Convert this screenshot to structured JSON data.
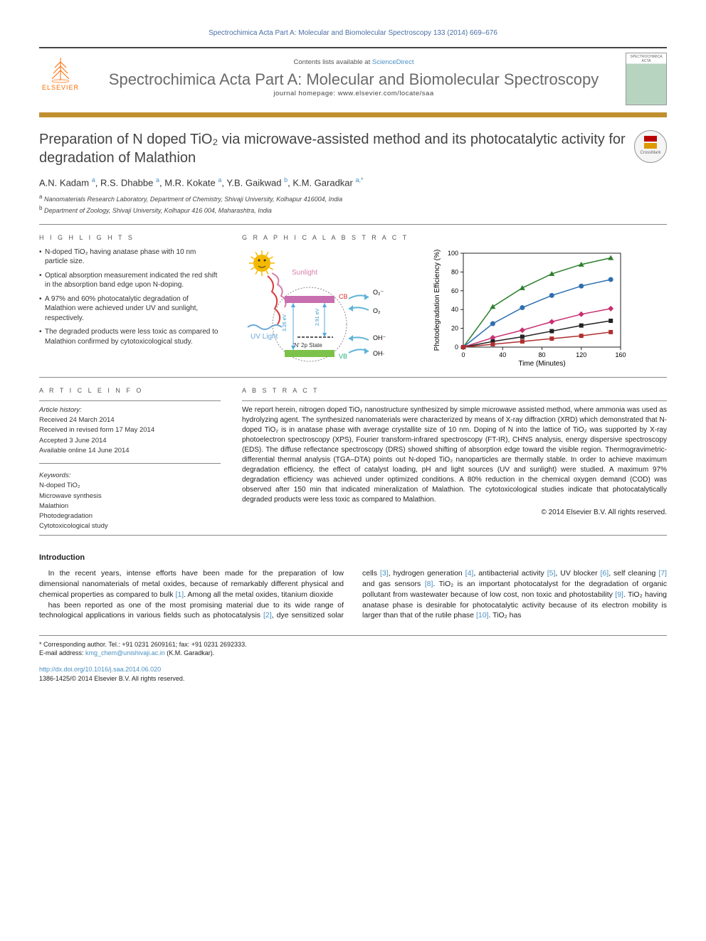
{
  "top_reference": "Spectrochimica Acta Part A: Molecular and Biomolecular Spectroscopy 133 (2014) 669–676",
  "header": {
    "contents_prefix": "Contents lists available at ",
    "contents_link": "ScienceDirect",
    "journal_name": "Spectrochimica Acta Part A: Molecular and Biomolecular Spectroscopy",
    "homepage_prefix": "journal homepage: ",
    "homepage_url": "www.elsevier.com/locate/saa",
    "publisher_logo_text": "ELSEVIER",
    "cover_text": "SPECTROCHIMICA ACTA"
  },
  "crossmark_label": "CrossMark",
  "article": {
    "title": "Preparation of N doped TiO₂ via microwave-assisted method and its photocatalytic activity for degradation of Malathion",
    "authors_html": "A.N. Kadam <sup>a</sup>, R.S. Dhabbe <sup>a</sup>, M.R. Kokate <sup>a</sup>, Y.B. Gaikwad <sup>b</sup>, K.M. Garadkar <sup>a,*</sup>",
    "affiliations": [
      "a Nanomaterials Research Laboratory, Department of Chemistry, Shivaji University, Kolhapur 416004, India",
      "b Department of Zoology, Shivaji University, Kolhapur 416 004, Maharashtra, India"
    ]
  },
  "labels": {
    "highlights": "H I G H L I G H T S",
    "graphical_abstract": "G R A P H I C A L  A B S T R A C T",
    "article_info": "A R T I C L E  I N F O",
    "abstract": "A B S T R A C T"
  },
  "highlights": [
    "N-doped TiO₂ having anatase phase with 10 nm particle size.",
    "Optical absorption measurement indicated the red shift in the absorption band edge upon N-doping.",
    "A 97% and 60% photocatalytic degradation of Malathion were achieved under UV and sunlight, respectively.",
    "The degraded products were less toxic as compared to Malathion confirmed by cytotoxicological study."
  ],
  "graphical_abstract_diagram": {
    "labels": {
      "sunlight": "Sunlight",
      "uv": "UV Light",
      "cb": "CB",
      "vb": "VB",
      "n2p": "'N' 2p State",
      "eV1": "3.26 eV",
      "eV2": "2.91 eV",
      "o2minus": "O₂⁻",
      "o2": "O₂",
      "ohminus": "OH⁻",
      "ohdot": "OH·"
    },
    "colors": {
      "sun": "#f5b800",
      "red_arrow": "#d83a3a",
      "blue_wave": "#6aa6d8",
      "pink_wave": "#d77fa8",
      "cb_band": "#c86fb0",
      "vb_band": "#7cc24a",
      "n_band": "#5a5a5a",
      "circle": "#888",
      "product_arrow": "#5fb4d8"
    }
  },
  "graphical_abstract_chart": {
    "type": "line",
    "x_label": "Time (Minutes)",
    "y_label": "Photodegradation Efficiency (%)",
    "xlim": [
      0,
      160
    ],
    "ylim": [
      0,
      100
    ],
    "xticks": [
      0,
      40,
      80,
      120,
      160
    ],
    "yticks": [
      0,
      20,
      40,
      60,
      80,
      100
    ],
    "axis_color": "#222",
    "grid_color": "#ddd",
    "label_fontsize": 10,
    "tick_fontsize": 9,
    "background_color": "#ffffff",
    "series": [
      {
        "name": "s1",
        "color": "#2d7f2d",
        "marker": "triangle",
        "x": [
          0,
          30,
          60,
          90,
          120,
          150
        ],
        "y": [
          0,
          43,
          63,
          78,
          88,
          95
        ]
      },
      {
        "name": "s2",
        "color": "#2d6fb0",
        "marker": "circle",
        "x": [
          0,
          30,
          60,
          90,
          120,
          150
        ],
        "y": [
          0,
          25,
          42,
          55,
          65,
          72
        ]
      },
      {
        "name": "s3",
        "color": "#c82f6f",
        "marker": "diamond",
        "x": [
          0,
          30,
          60,
          90,
          120,
          150
        ],
        "y": [
          0,
          10,
          18,
          27,
          35,
          41
        ]
      },
      {
        "name": "s4",
        "color": "#222222",
        "marker": "square",
        "x": [
          0,
          30,
          60,
          90,
          120,
          150
        ],
        "y": [
          0,
          6,
          11,
          17,
          23,
          28
        ]
      },
      {
        "name": "s5",
        "color": "#b02f2f",
        "marker": "square",
        "x": [
          0,
          30,
          60,
          90,
          120,
          150
        ],
        "y": [
          0,
          3,
          6,
          9,
          12,
          16
        ]
      }
    ]
  },
  "article_info": {
    "history_label": "Article history:",
    "history": [
      "Received 24 March 2014",
      "Received in revised form 17 May 2014",
      "Accepted 3 June 2014",
      "Available online 14 June 2014"
    ],
    "keywords_label": "Keywords:",
    "keywords": [
      "N-doped TiO₂",
      "Microwave synthesis",
      "Malathion",
      "Photodegradation",
      "Cytotoxicological study"
    ]
  },
  "abstract_text": "We report herein, nitrogen doped TiO₂ nanostructure synthesized by simple microwave assisted method, where ammonia was used as hydrolyzing agent. The synthesized nanomaterials were characterized by means of X-ray diffraction (XRD) which demonstrated that N-doped TiO₂ is in anatase phase with average crystallite size of 10 nm. Doping of N into the lattice of TiO₂ was supported by X-ray photoelectron spectroscopy (XPS), Fourier transform-infrared spectroscopy (FT-IR), CHNS analysis, energy dispersive spectroscopy (EDS). The diffuse reflectance spectroscopy (DRS) showed shifting of absorption edge toward the visible region. Thermogravimetric-differential thermal analysis (TGA–DTA) points out N-doped TiO₂ nanoparticles are thermally stable. In order to achieve maximum degradation efficiency, the effect of catalyst loading, pH and light sources (UV and sunlight) were studied. A maximum 97% degradation efficiency was achieved under optimized conditions. A 80% reduction in the chemical oxygen demand (COD) was observed after 150 min that indicated mineralization of Malathion. The cytotoxicological studies indicate that photocatalytically degraded products were less toxic as compared to Malathion.",
  "copyright": "© 2014 Elsevier B.V. All rights reserved.",
  "introduction": {
    "heading": "Introduction",
    "para1": "In the recent years, intense efforts have been made for the preparation of low dimensional nanomaterials of metal oxides, because of remarkably different physical and chemical properties as compared to bulk [1]. Among all the metal oxides, titanium dioxide",
    "para2": "has been reported as one of the most promising material due to its wide range of technological applications in various fields such as photocatalysis [2], dye sensitized solar cells [3], hydrogen generation [4], antibacterial activity [5], UV blocker [6], self cleaning [7] and gas sensors [8]. TiO₂ is an important photocatalyst for the degradation of organic pollutant from wastewater because of low cost, non toxic and photostability [9]. TiO₂ having anatase phase is desirable for photocatalytic activity because of its electron mobility is larger than that of the rutile phase [10]. TiO₂ has"
  },
  "footer": {
    "corr_label": "* Corresponding author. Tel.: +91 0231 2609161; fax: +91 0231 2692333.",
    "email_label": "E-mail address: ",
    "email": "kmg_chem@unishivaji.ac.in",
    "email_suffix": " (K.M. Garadkar).",
    "doi": "http://dx.doi.org/10.1016/j.saa.2014.06.020",
    "issn": "1386-1425/© 2014 Elsevier B.V. All rights reserved."
  }
}
